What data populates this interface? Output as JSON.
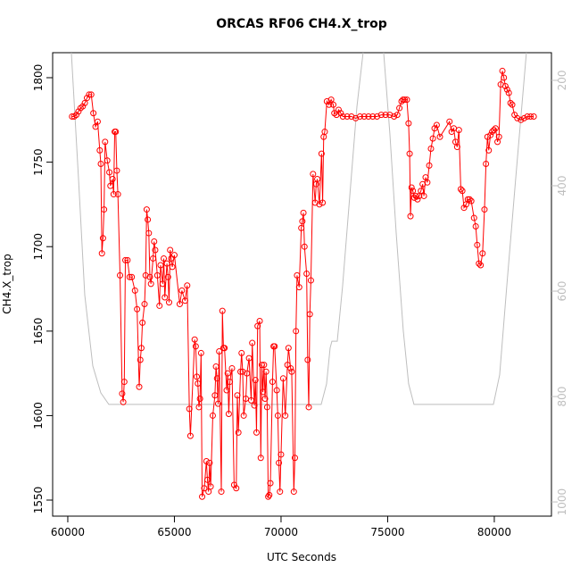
{
  "chart_data": {
    "type": "line",
    "title": "ORCAS RF06 CH4.X_trop",
    "x_label": "UTC Seconds",
    "y_label": "CH4.X_trop",
    "xlim": [
      59290,
      82680
    ],
    "xticks": [
      60000,
      65000,
      70000,
      75000,
      80000
    ],
    "ylim": [
      1540.5,
      1814.8
    ],
    "yticks": [
      1550,
      1600,
      1650,
      1700,
      1750,
      1800
    ],
    "y2lim": [
      1027,
      147.5
    ],
    "y2ticks": [
      200,
      400,
      600,
      800,
      1000
    ],
    "series": [
      {
        "color": "#ff0000",
        "markers": true,
        "x": [
          60200,
          60300,
          60400,
          60500,
          60600,
          60700,
          60800,
          60900,
          61000,
          61100,
          61200,
          61300,
          61400,
          61500,
          61550,
          61600,
          61650,
          61700,
          61750,
          61850,
          61950,
          62000,
          62100,
          62150,
          62200,
          62250,
          62300,
          62350,
          62450,
          62550,
          62600,
          62650,
          62700,
          62800,
          62900,
          63000,
          63150,
          63250,
          63350,
          63400,
          63450,
          63500,
          63600,
          63650,
          63700,
          63750,
          63800,
          63850,
          63900,
          64000,
          64050,
          64100,
          64200,
          64300,
          64350,
          64450,
          64500,
          64550,
          64650,
          64700,
          64750,
          64800,
          64850,
          64900,
          65000,
          65250,
          65350,
          65500,
          65600,
          65700,
          65750,
          65950,
          66000,
          66050,
          66100,
          66150,
          66200,
          66250,
          66300,
          66400,
          66500,
          66550,
          66600,
          66650,
          66700,
          66800,
          66900,
          66950,
          67000,
          67050,
          67100,
          67200,
          67250,
          67300,
          67350,
          67450,
          67500,
          67550,
          67600,
          67700,
          67800,
          67900,
          67950,
          68000,
          68100,
          68150,
          68200,
          68250,
          68350,
          68400,
          68500,
          68600,
          68650,
          68750,
          68800,
          68850,
          68900,
          69000,
          69050,
          69100,
          69150,
          69200,
          69250,
          69300,
          69350,
          69400,
          69450,
          69500,
          69600,
          69650,
          69700,
          69800,
          69850,
          69900,
          69950,
          70000,
          70100,
          70200,
          70300,
          70350,
          70450,
          70500,
          70600,
          70650,
          70700,
          70750,
          70850,
          70950,
          71000,
          71050,
          71100,
          71200,
          71250,
          71300,
          71350,
          71400,
          71500,
          71600,
          71650,
          71700,
          71800,
          71900,
          71950,
          72000,
          72050,
          72150,
          72250,
          72350,
          72450,
          72500,
          72600,
          72700,
          72800,
          72900,
          73100,
          73300,
          73500,
          73700,
          73900,
          74100,
          74300,
          74500,
          74700,
          74900,
          75100,
          75300,
          75450,
          75550,
          75650,
          75720,
          75800,
          75900,
          75980,
          76030,
          76070,
          76120,
          76180,
          76250,
          76320,
          76400,
          76480,
          76560,
          76640,
          76700,
          76780,
          76860,
          76950,
          77030,
          77120,
          77200,
          77300,
          77450,
          77900,
          78000,
          78100,
          78180,
          78260,
          78340,
          78430,
          78500,
          78580,
          78680,
          78760,
          78840,
          78920,
          79050,
          79130,
          79200,
          79280,
          79360,
          79450,
          79540,
          79610,
          79680,
          79740,
          79820,
          79900,
          79980,
          80060,
          80150,
          80220,
          80300,
          80380,
          80450,
          80520,
          80600,
          80680,
          80760,
          80840,
          80950,
          81080,
          81250,
          81400,
          81550,
          81700,
          81850
        ],
        "values": [
          1777,
          1777,
          1778,
          1780,
          1782,
          1783,
          1785,
          1788,
          1790,
          1790,
          1779,
          1771,
          1774,
          1757,
          1749,
          1696,
          1705,
          1722,
          1762,
          1751,
          1744,
          1736,
          1740,
          1731,
          1768,
          1768,
          1745,
          1731,
          1683,
          1613,
          1608,
          1620,
          1692,
          1692,
          1682,
          1682,
          1674,
          1663,
          1617,
          1633,
          1640,
          1655,
          1666,
          1683,
          1722,
          1716,
          1708,
          1682,
          1678,
          1693,
          1703,
          1698,
          1683,
          1665,
          1689,
          1678,
          1693,
          1670,
          1690,
          1682,
          1667,
          1698,
          1693,
          1688,
          1695,
          1666,
          1674,
          1668,
          1677,
          1604,
          1588,
          1645,
          1641,
          1623,
          1619,
          1605,
          1610,
          1637,
          1552,
          1557,
          1573,
          1562,
          1555,
          1572,
          1558,
          1600,
          1612,
          1629,
          1622,
          1607,
          1638,
          1555,
          1662,
          1640,
          1640,
          1615,
          1625,
          1601,
          1620,
          1628,
          1559,
          1557,
          1612,
          1590,
          1626,
          1637,
          1626,
          1600,
          1610,
          1625,
          1634,
          1609,
          1643,
          1606,
          1621,
          1590,
          1653,
          1656,
          1575,
          1630,
          1614,
          1630,
          1610,
          1626,
          1605,
          1552,
          1553,
          1560,
          1620,
          1641,
          1641,
          1615,
          1600,
          1572,
          1555,
          1577,
          1622,
          1600,
          1630,
          1640,
          1628,
          1626,
          1555,
          1575,
          1650,
          1683,
          1676,
          1711,
          1715,
          1720,
          1700,
          1684,
          1633,
          1605,
          1660,
          1680,
          1743,
          1726,
          1737,
          1740,
          1725,
          1755,
          1726,
          1765,
          1768,
          1786,
          1784,
          1787,
          1784,
          1779,
          1778,
          1781,
          1779,
          1777,
          1777,
          1777,
          1776,
          1777,
          1777,
          1777,
          1777,
          1777,
          1778,
          1778,
          1778,
          1777,
          1778,
          1782,
          1786,
          1787,
          1787,
          1787,
          1773,
          1755,
          1718,
          1735,
          1733,
          1729,
          1730,
          1728,
          1730,
          1733,
          1737,
          1730,
          1741,
          1738,
          1748,
          1758,
          1764,
          1770,
          1772,
          1765,
          1774,
          1768,
          1770,
          1762,
          1759,
          1769,
          1734,
          1733,
          1723,
          1725,
          1728,
          1728,
          1727,
          1717,
          1712,
          1701,
          1690,
          1689,
          1696,
          1722,
          1749,
          1765,
          1757,
          1766,
          1768,
          1769,
          1770,
          1762,
          1765,
          1796,
          1804,
          1800,
          1795,
          1793,
          1791,
          1785,
          1784,
          1778,
          1776,
          1775,
          1776,
          1777,
          1777,
          1777
        ]
      },
      {
        "color": "#bebebe",
        "axis": "y2",
        "markers": false,
        "x": [
          60167,
          60502,
          60795,
          61172,
          61548,
          61925,
          71883,
          72134,
          72301,
          72385,
          72636,
          72887,
          73222,
          73556,
          73849,
          74330,
          74812,
          75105,
          75397,
          75732,
          75983,
          76234,
          79958,
          80251,
          80586,
          81004,
          81506
        ],
        "values": [
          147,
          386,
          607,
          742,
          793,
          815,
          815,
          776,
          708,
          695,
          695,
          590,
          420,
          251,
          147,
          null,
          147,
          302,
          488,
          675,
          776,
          815,
          815,
          759,
          590,
          386,
          147
        ]
      }
    ]
  }
}
